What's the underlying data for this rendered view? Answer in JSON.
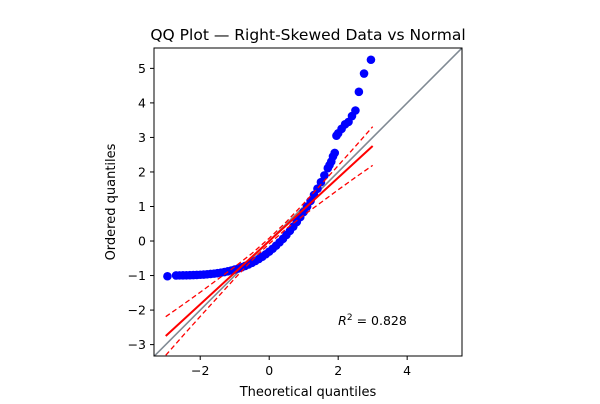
{
  "chart_data": {
    "type": "scatter",
    "title": "QQ Plot — Right-Skewed Data vs Normal",
    "xlabel": "Theoretical quantiles",
    "ylabel": "Ordered quantiles",
    "xlim": [
      -3.34,
      5.59
    ],
    "ylim": [
      -3.33,
      5.59
    ],
    "xticks": [
      -2,
      0,
      2,
      4
    ],
    "yticks": [
      -3,
      -2,
      -1,
      0,
      1,
      2,
      3,
      4,
      5
    ],
    "grid": false,
    "annotation": "R² = 0.828",
    "r_squared": 0.828,
    "colors": {
      "points": "#0000ff",
      "fit": "#ff0000",
      "band": "#ff0000",
      "reference": "#808a94"
    },
    "points": {
      "x": [
        -2.95,
        -2.7,
        -2.6,
        -2.5,
        -2.4,
        -2.3,
        -2.2,
        -2.1,
        -2.0,
        -1.9,
        -1.8,
        -1.7,
        -1.6,
        -1.5,
        -1.4,
        -1.3,
        -1.2,
        -1.1,
        -1.0,
        -0.9,
        -0.8,
        -0.7,
        -0.6,
        -0.5,
        -0.4,
        -0.3,
        -0.2,
        -0.1,
        0.0,
        0.1,
        0.2,
        0.3,
        0.4,
        0.5,
        0.6,
        0.7,
        0.8,
        0.9,
        1.0,
        1.1,
        1.2,
        1.3,
        1.4,
        1.5,
        1.6,
        1.7,
        1.75,
        1.8,
        1.85,
        1.9,
        1.95,
        2.0,
        2.1,
        2.2,
        2.3,
        2.4,
        2.5,
        2.6,
        2.75,
        2.95
      ],
      "y": [
        -1.02,
        -0.997,
        -0.995,
        -0.994,
        -0.992,
        -0.989,
        -0.986,
        -0.982,
        -0.977,
        -0.971,
        -0.963,
        -0.954,
        -0.944,
        -0.931,
        -0.916,
        -0.898,
        -0.878,
        -0.854,
        -0.827,
        -0.796,
        -0.762,
        -0.723,
        -0.68,
        -0.631,
        -0.578,
        -0.519,
        -0.454,
        -0.383,
        -0.307,
        -0.224,
        -0.134,
        -0.038,
        0.065,
        0.177,
        0.294,
        0.419,
        0.552,
        0.692,
        0.84,
        0.998,
        1.162,
        1.335,
        1.515,
        1.705,
        1.9,
        2.11,
        2.2,
        2.3,
        2.45,
        2.55,
        3.05,
        3.12,
        3.25,
        3.38,
        3.45,
        3.62,
        3.78,
        4.32,
        4.85,
        5.25
      ]
    },
    "fit_line": {
      "slope": 0.917,
      "intercept": 0.0,
      "x_range": [
        -3.0,
        3.0
      ]
    },
    "confidence_band": {
      "x": [
        -3.0,
        -2.5,
        -2.0,
        -1.5,
        -1.0,
        -0.5,
        0.0,
        0.5,
        1.0,
        1.5,
        2.0,
        2.5,
        3.0
      ],
      "halfwidth": [
        0.56,
        0.45,
        0.35,
        0.26,
        0.17,
        0.1,
        0.08,
        0.1,
        0.17,
        0.26,
        0.35,
        0.45,
        0.56
      ]
    },
    "reference_line": {
      "slope": 1,
      "intercept": 0
    }
  }
}
